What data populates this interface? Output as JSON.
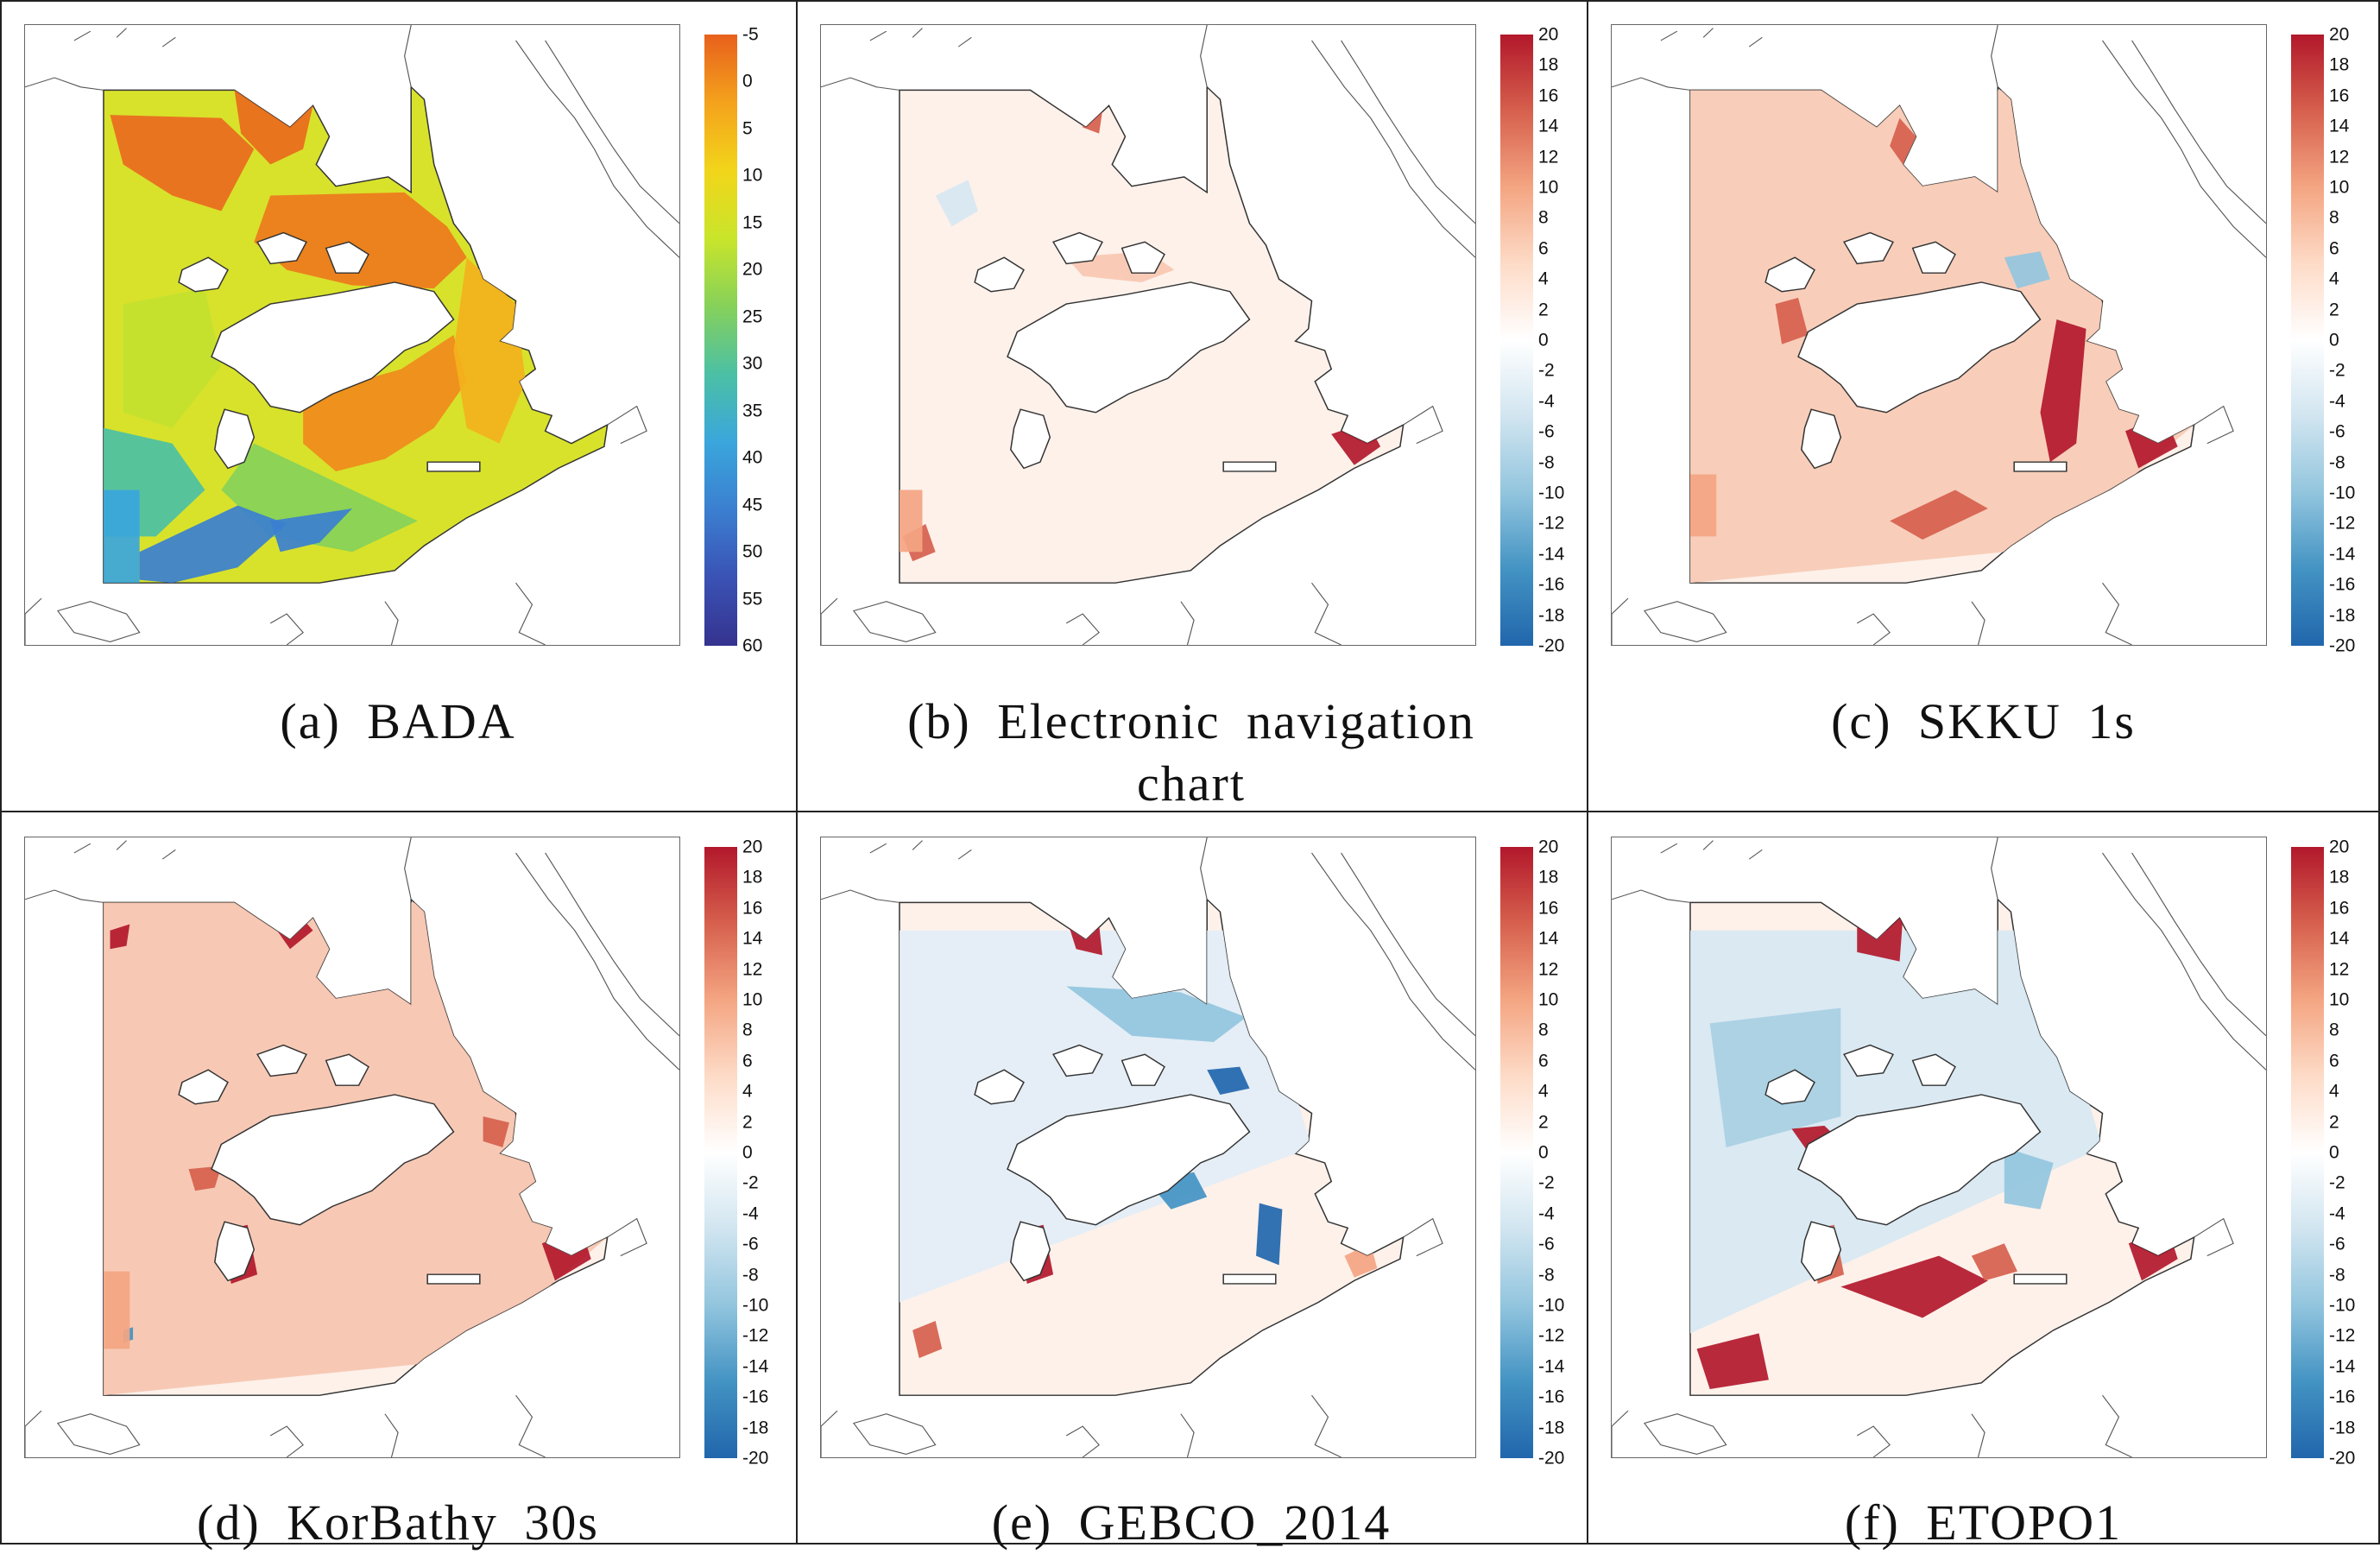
{
  "panels": [
    {
      "id": "a",
      "caption": "(a)  BADA",
      "colorbar": [
        "-5",
        "0",
        "5",
        "10",
        "15",
        "20",
        "25",
        "30",
        "35",
        "40",
        "45",
        "50",
        "55",
        "60"
      ],
      "palette": "depth"
    },
    {
      "id": "b",
      "caption": "(b)  Electronic  navigation chart",
      "colorbar": [
        "20",
        "18",
        "16",
        "14",
        "12",
        "10",
        "8",
        "6",
        "4",
        "2",
        "0",
        "-2",
        "-4",
        "-6",
        "-8",
        "-10",
        "-12",
        "-14",
        "-16",
        "-18",
        "-20"
      ],
      "palette": "diff"
    },
    {
      "id": "c",
      "caption": "(c)  SKKU  1s",
      "colorbar": [
        "20",
        "18",
        "16",
        "14",
        "12",
        "10",
        "8",
        "6",
        "4",
        "2",
        "0",
        "-2",
        "-4",
        "-6",
        "-8",
        "-10",
        "-12",
        "-14",
        "-16",
        "-18",
        "-20"
      ],
      "palette": "diff"
    },
    {
      "id": "d",
      "caption": "(d)  KorBathy  30s",
      "colorbar": [
        "20",
        "18",
        "16",
        "14",
        "12",
        "10",
        "8",
        "6",
        "4",
        "2",
        "0",
        "-2",
        "-4",
        "-6",
        "-8",
        "-10",
        "-12",
        "-14",
        "-16",
        "-18",
        "-20"
      ],
      "palette": "diff"
    },
    {
      "id": "e",
      "caption": "(e)  GEBCO_2014",
      "colorbar": [
        "20",
        "18",
        "16",
        "14",
        "12",
        "10",
        "8",
        "6",
        "4",
        "2",
        "0",
        "-2",
        "-4",
        "-6",
        "-8",
        "-10",
        "-12",
        "-14",
        "-16",
        "-18",
        "-20"
      ],
      "palette": "diff"
    },
    {
      "id": "f",
      "caption": "(f)  ETOPO1",
      "colorbar": [
        "20",
        "18",
        "16",
        "14",
        "12",
        "10",
        "8",
        "6",
        "4",
        "2",
        "0",
        "-2",
        "-4",
        "-6",
        "-8",
        "-10",
        "-12",
        "-14",
        "-16",
        "-18",
        "-20"
      ],
      "palette": "diff"
    }
  ],
  "colors": {
    "depth_scale": [
      "#e8601c",
      "#f4a21c",
      "#f2d51a",
      "#c9e52a",
      "#86d15a",
      "#4cc0a5",
      "#3aa6dc",
      "#3b7fd0",
      "#3a52b4",
      "#35338f"
    ],
    "diff_scale": [
      "#b2182b",
      "#d6604d",
      "#f4a582",
      "#fddbc7",
      "#ffffff",
      "#d1e5f0",
      "#92c5de",
      "#4393c3",
      "#2166ac"
    ],
    "coastline": "#333333",
    "frame": "#666666",
    "divider": "#222222"
  }
}
